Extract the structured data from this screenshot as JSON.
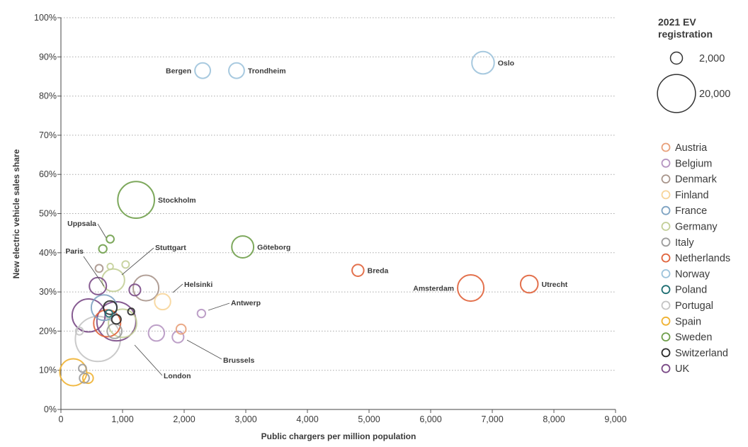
{
  "chart_data": {
    "type": "scatter",
    "subtype": "bubble",
    "xlabel": "Public chargers per million population",
    "ylabel": "New electric vehicle sales share",
    "xlim": [
      0,
      9000
    ],
    "ylim": [
      0,
      100
    ],
    "x_ticks": [
      0,
      1000,
      2000,
      3000,
      4000,
      5000,
      6000,
      7000,
      8000,
      9000
    ],
    "x_tick_labels": [
      "0",
      "1,000",
      "2,000",
      "3,000",
      "4,000",
      "5,000",
      "6,000",
      "7,000",
      "8,000",
      "9,000"
    ],
    "y_ticks": [
      0,
      10,
      20,
      30,
      40,
      50,
      60,
      70,
      80,
      90,
      100
    ],
    "y_tick_labels": [
      "0%",
      "10%",
      "20%",
      "30%",
      "40%",
      "50%",
      "60%",
      "70%",
      "80%",
      "90%",
      "100%"
    ],
    "grid": "horizontal dotted",
    "size_legend": {
      "title": "2021 EV registration",
      "title_lines": [
        "2021 EV",
        "registration"
      ],
      "entries": [
        {
          "label": "2,000",
          "value": 2000
        },
        {
          "label": "20,000",
          "value": 20000
        }
      ]
    },
    "countries": [
      {
        "name": "Austria",
        "color": "#e8a07a"
      },
      {
        "name": "Belgium",
        "color": "#b696c2"
      },
      {
        "name": "Denmark",
        "color": "#a8958b"
      },
      {
        "name": "Finland",
        "color": "#f7d59a"
      },
      {
        "name": "France",
        "color": "#7ea3c2"
      },
      {
        "name": "Germany",
        "color": "#c3cf98"
      },
      {
        "name": "Italy",
        "color": "#9c9c9c"
      },
      {
        "name": "Netherlands",
        "color": "#e0623a"
      },
      {
        "name": "Norway",
        "color": "#9dc3db"
      },
      {
        "name": "Poland",
        "color": "#1f6f73"
      },
      {
        "name": "Portugal",
        "color": "#c4c4c4"
      },
      {
        "name": "Spain",
        "color": "#f0b232"
      },
      {
        "name": "Sweden",
        "color": "#6f9e4a"
      },
      {
        "name": "Switzerland",
        "color": "#2b2b2b"
      },
      {
        "name": "UK",
        "color": "#7a4a86"
      }
    ],
    "points": [
      {
        "city": "Oslo",
        "country": "Norway",
        "x": 6850,
        "y": 88.5,
        "ev_registrations": 6900,
        "label": "Oslo",
        "label_side": "right"
      },
      {
        "city": "Bergen",
        "country": "Norway",
        "x": 2300,
        "y": 86.5,
        "ev_registrations": 3300,
        "label": "Bergen",
        "label_side": "left"
      },
      {
        "city": "Trondheim",
        "country": "Norway",
        "x": 2850,
        "y": 86.5,
        "ev_registrations": 3300,
        "label": "Trondheim",
        "label_side": "right"
      },
      {
        "city": "Stockholm",
        "country": "Sweden",
        "x": 1220,
        "y": 53.5,
        "ev_registrations": 18500,
        "label": "Stockholm",
        "label_side": "right"
      },
      {
        "city": "Göteborg",
        "country": "Sweden",
        "x": 2950,
        "y": 41.5,
        "ev_registrations": 6600,
        "label": "Göteborg",
        "label_side": "right"
      },
      {
        "city": "Uppsala",
        "country": "Sweden",
        "x": 800,
        "y": 43.5,
        "ev_registrations": 800,
        "label": "Uppsala",
        "label_side": "left"
      },
      {
        "city": "Sweden city",
        "country": "Sweden",
        "x": 680,
        "y": 41,
        "ev_registrations": 900
      },
      {
        "city": "Breda",
        "country": "Netherlands",
        "x": 4820,
        "y": 35.5,
        "ev_registrations": 1900,
        "label": "Breda",
        "label_side": "right"
      },
      {
        "city": "Amsterdam",
        "country": "Netherlands",
        "x": 6650,
        "y": 31,
        "ev_registrations": 9500,
        "label": "Amsterdam",
        "label_side": "left"
      },
      {
        "city": "Utrecht",
        "country": "Netherlands",
        "x": 7600,
        "y": 32,
        "ev_registrations": 4200,
        "label": "Utrecht",
        "label_side": "right"
      },
      {
        "city": "Helsinki",
        "country": "Finland",
        "x": 1650,
        "y": 27.5,
        "ev_registrations": 3500,
        "label": "Helsinki",
        "label_side": "right"
      },
      {
        "city": "Stuttgart",
        "country": "Germany",
        "x": 850,
        "y": 33,
        "ev_registrations": 7000,
        "label": "Stuttgart",
        "label_side": "right"
      },
      {
        "city": "Germany city 2",
        "country": "Germany",
        "x": 1050,
        "y": 37,
        "ev_registrations": 700
      },
      {
        "city": "Germany city 3",
        "country": "Germany",
        "x": 800,
        "y": 36.5,
        "ev_registrations": 500
      },
      {
        "city": "Germany city 4",
        "country": "Germany",
        "x": 1000,
        "y": 22,
        "ev_registrations": 11000
      },
      {
        "city": "Denmark city 1",
        "country": "Denmark",
        "x": 1380,
        "y": 31,
        "ev_registrations": 9000
      },
      {
        "city": "Denmark city 2",
        "country": "Denmark",
        "x": 620,
        "y": 36,
        "ev_registrations": 800
      },
      {
        "city": "Paris",
        "country": "France",
        "x": 700,
        "y": 26,
        "ev_registrations": 9000,
        "label": "Paris",
        "label_side": "left"
      },
      {
        "city": "London",
        "country": "UK",
        "x": 900,
        "y": 22.5,
        "ev_registrations": 21000,
        "label": "London",
        "label_side": "right"
      },
      {
        "city": "UK city 2",
        "country": "UK",
        "x": 1200,
        "y": 30.5,
        "ev_registrations": 1800
      },
      {
        "city": "UK city 3",
        "country": "UK",
        "x": 450,
        "y": 24,
        "ev_registrations": 15000
      },
      {
        "city": "UK city 4",
        "country": "UK",
        "x": 600,
        "y": 31.5,
        "ev_registrations": 4000
      },
      {
        "city": "Antwerp",
        "country": "Belgium",
        "x": 2280,
        "y": 24.5,
        "ev_registrations": 900,
        "label": "Antwerp",
        "label_side": "right"
      },
      {
        "city": "Brussels",
        "country": "Belgium",
        "x": 1900,
        "y": 18.5,
        "ev_registrations": 1800,
        "label": "Brussels",
        "label_side": "right"
      },
      {
        "city": "Belgium city 3",
        "country": "Belgium",
        "x": 1550,
        "y": 19.5,
        "ev_registrations": 3500
      },
      {
        "city": "Austria city",
        "country": "Austria",
        "x": 1950,
        "y": 20.5,
        "ev_registrations": 1300
      },
      {
        "city": "Netherlands city",
        "country": "Netherlands",
        "x": 750,
        "y": 22,
        "ev_registrations": 10000
      },
      {
        "city": "Italy city 1",
        "country": "Italy",
        "x": 350,
        "y": 10.5,
        "ev_registrations": 800
      },
      {
        "city": "Italy city 2",
        "country": "Italy",
        "x": 380,
        "y": 8,
        "ev_registrations": 1300
      },
      {
        "city": "Italy city 3",
        "country": "Italy",
        "x": 870,
        "y": 20,
        "ev_registrations": 3000
      },
      {
        "city": "Spain city 1",
        "country": "Spain",
        "x": 200,
        "y": 9.5,
        "ev_registrations": 10000
      },
      {
        "city": "Spain city 2",
        "country": "Spain",
        "x": 440,
        "y": 8,
        "ev_registrations": 1500
      },
      {
        "city": "Portugal city",
        "country": "Portugal",
        "x": 300,
        "y": 20,
        "ev_registrations": 800
      },
      {
        "city": "Portugal city 2",
        "country": "Portugal",
        "x": 600,
        "y": 18,
        "ev_registrations": 28000
      },
      {
        "city": "Poland city",
        "country": "Poland",
        "x": 780,
        "y": 24.5,
        "ev_registrations": 700
      },
      {
        "city": "Switzerland city 1",
        "country": "Switzerland",
        "x": 800,
        "y": 26,
        "ev_registrations": 2500
      },
      {
        "city": "Switzerland city 2",
        "country": "Switzerland",
        "x": 900,
        "y": 23,
        "ev_registrations": 1200
      },
      {
        "city": "Switzerland city 3",
        "country": "Switzerland",
        "x": 1140,
        "y": 25,
        "ev_registrations": 600
      }
    ],
    "annotations": [
      {
        "text": "Uppsala",
        "target": "Uppsala"
      },
      {
        "text": "Paris",
        "target": "Paris"
      },
      {
        "text": "Stuttgart",
        "target": "Stuttgart"
      },
      {
        "text": "Helsinki",
        "target": "Helsinki"
      },
      {
        "text": "Antwerp",
        "target": "Antwerp"
      },
      {
        "text": "Brussels",
        "target": "Brussels"
      },
      {
        "text": "London",
        "target": "London"
      }
    ]
  }
}
